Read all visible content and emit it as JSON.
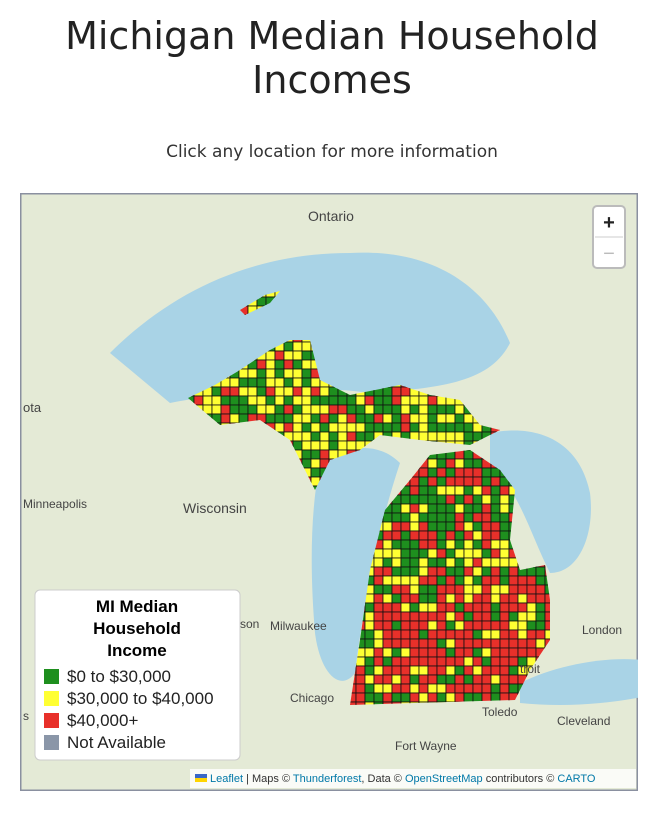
{
  "header": {
    "title_lines": [
      "Michigan Median Household",
      "Incomes"
    ],
    "subtitle": "Click any location for more information"
  },
  "map": {
    "zoom_in": "+",
    "zoom_out": "−",
    "place_labels": [
      "Ontario",
      "Wisconsin",
      "Minneapolis",
      "Milwaukee",
      "Chicago",
      "Fort Wayne",
      "Toledo",
      "Cleveland",
      "London",
      "ota",
      "son",
      "troit",
      "s"
    ],
    "legend": {
      "title_lines": [
        "MI Median",
        "Household",
        "Income"
      ],
      "items": [
        {
          "label": "$0 to $30,000",
          "color": "#1e8f1e"
        },
        {
          "label": "$30,000 to $40,000",
          "color": "#ffff33"
        },
        {
          "label": "$40,000+",
          "color": "#e8302a"
        },
        {
          "label": "Not Available",
          "color": "#8a96a8"
        }
      ]
    },
    "attribution": [
      "Leaflet",
      " | Maps © ",
      "Thunderforest",
      ", Data © ",
      "OpenStreetMap",
      " contributors © ",
      "CARTO"
    ]
  }
}
